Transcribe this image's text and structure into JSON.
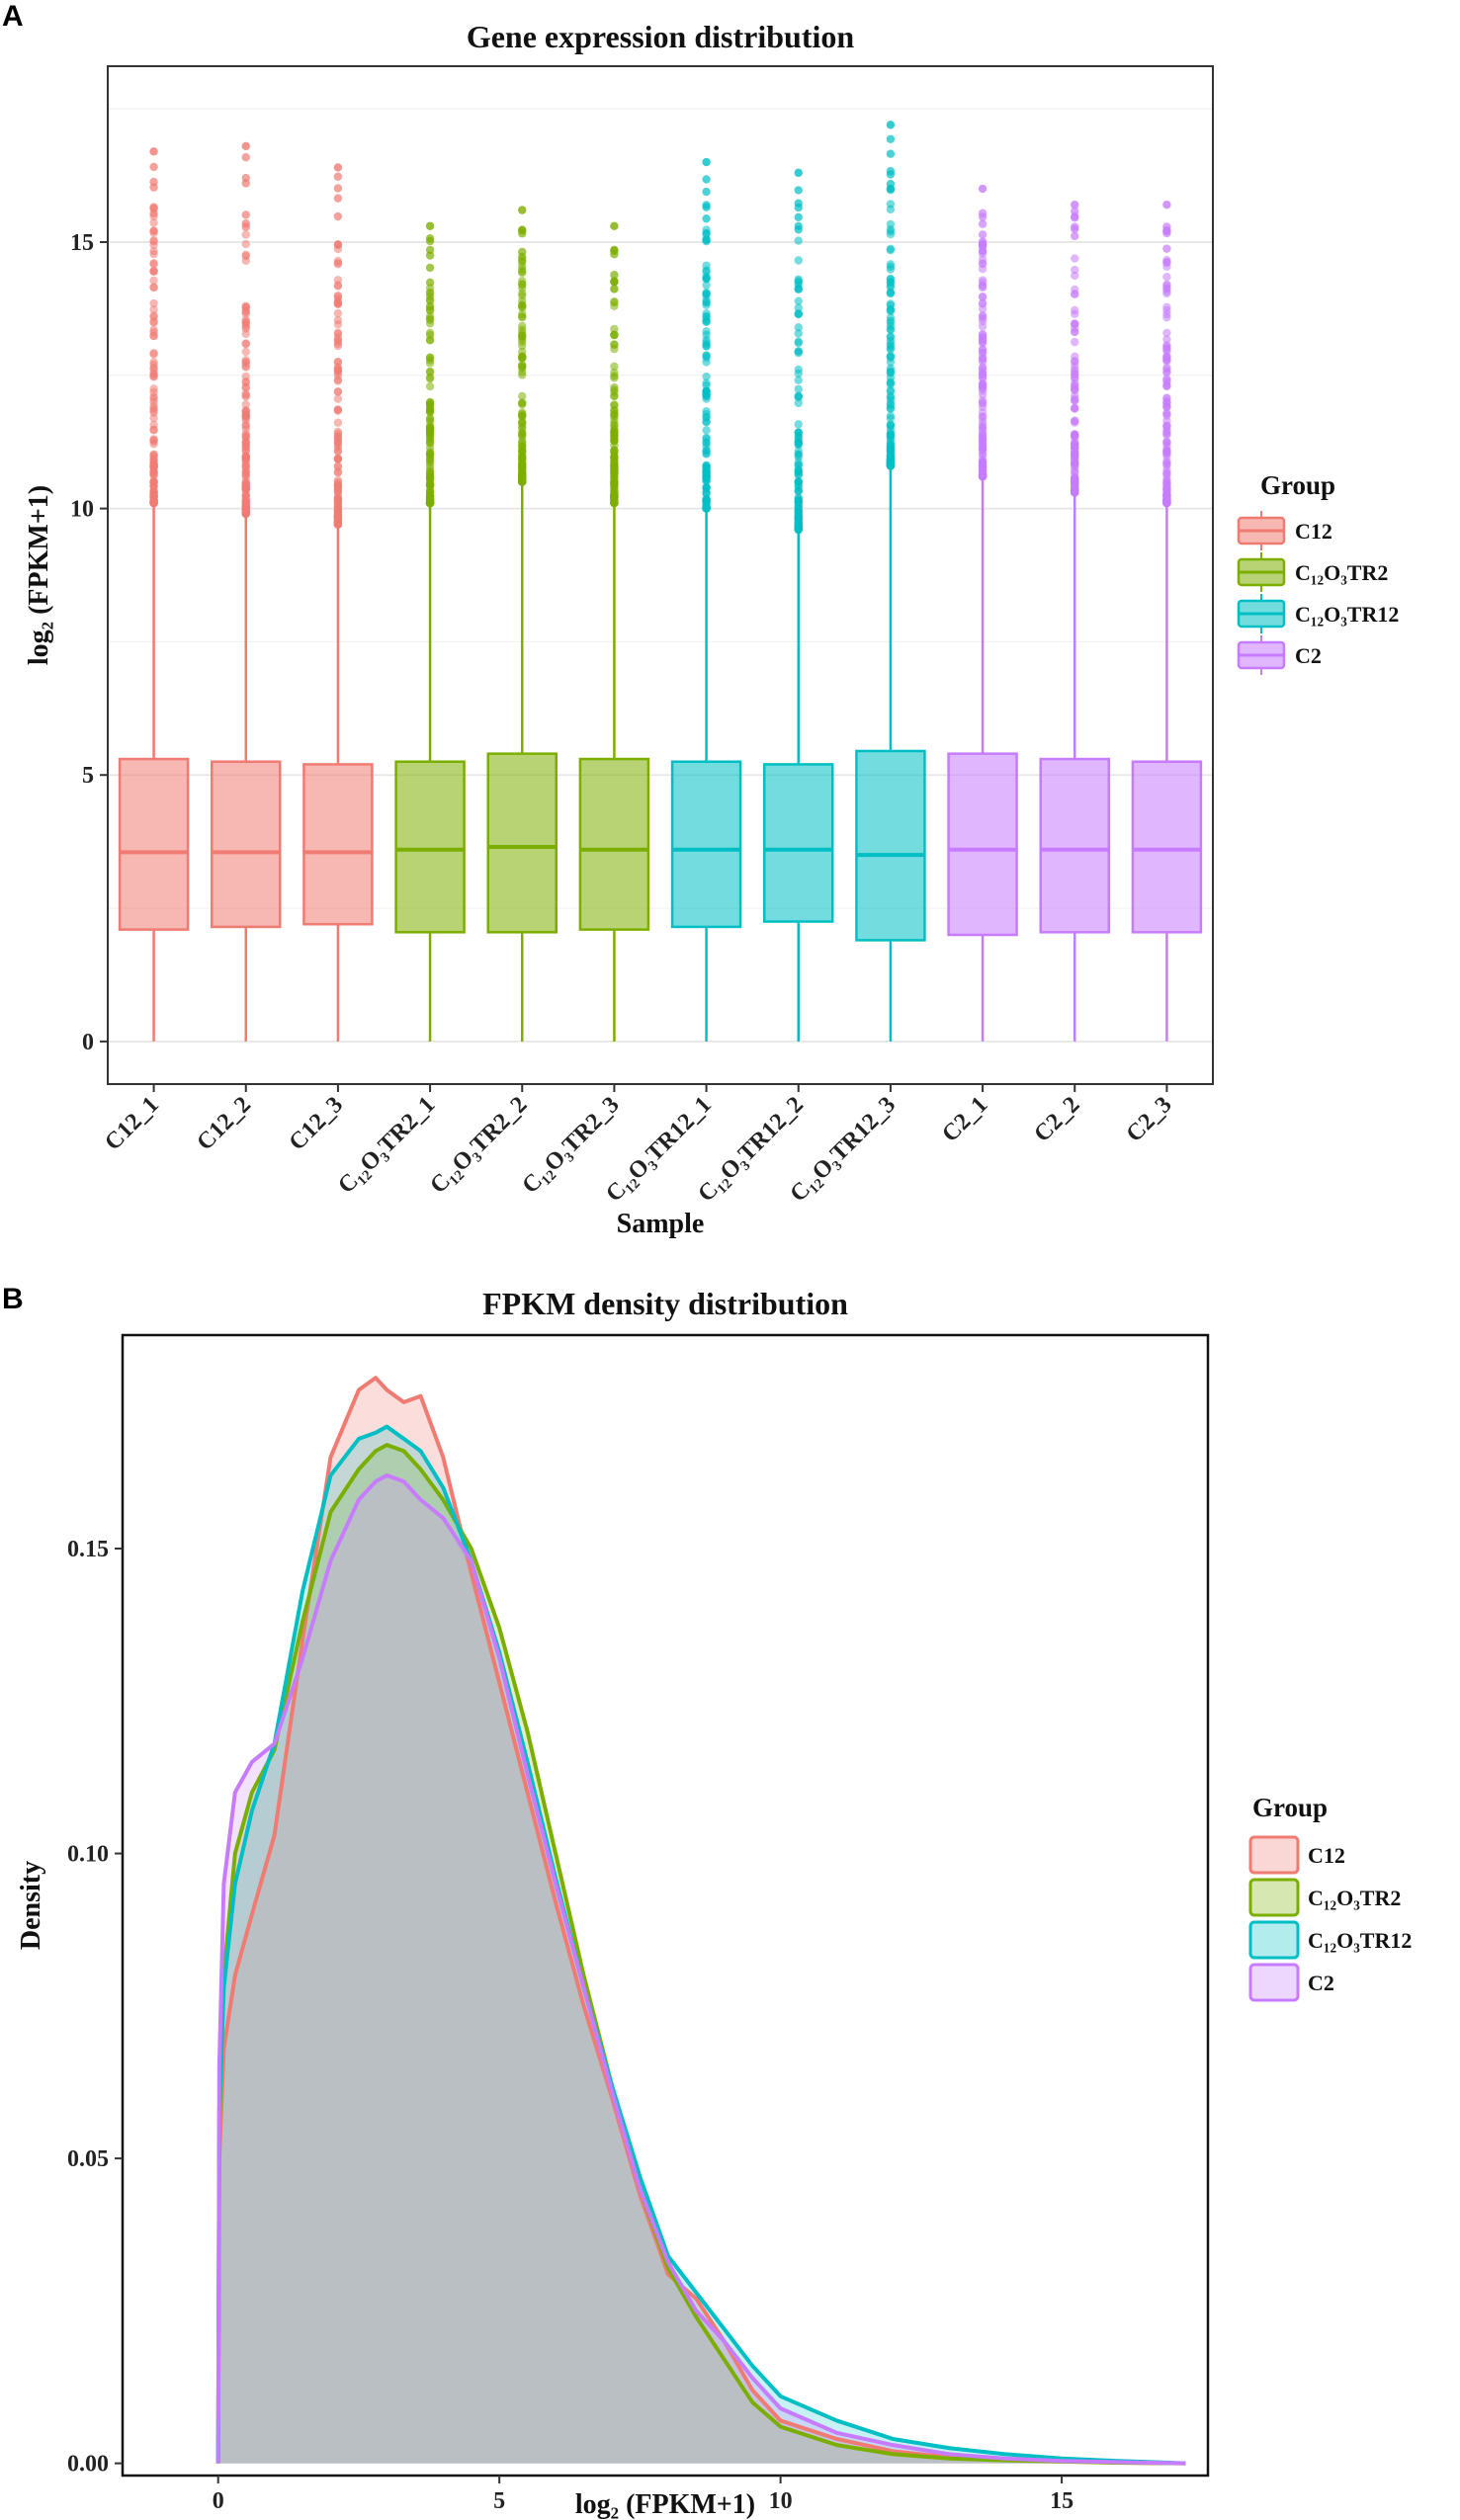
{
  "panels": {
    "a": "A",
    "b": "B"
  },
  "groups": [
    {
      "name": "C12",
      "label": "C12",
      "color": "#F07B72"
    },
    {
      "name": "C12O3TR2",
      "label": "C₁₂O₃TR2",
      "color": "#7CAE00"
    },
    {
      "name": "C12O3TR12",
      "label": "C₁₂O₃TR12",
      "color": "#00BFC4"
    },
    {
      "name": "C2",
      "label": "C2",
      "color": "#C77CFF"
    }
  ],
  "chart_data": [
    {
      "type": "boxplot",
      "title": "Gene expression distribution",
      "xlabel": "Sample",
      "ylabel": "log₂ (FPKM+1)",
      "ylim": [
        -0.8,
        18.3
      ],
      "yticks": [
        0,
        5,
        10,
        15
      ],
      "legend_title": "Group",
      "legend_position": "right",
      "samples": [
        {
          "label": "C12_1",
          "group": 0,
          "min": 0,
          "q1": 2.1,
          "median": 3.55,
          "q3": 5.3,
          "whisker_high": 10.1,
          "outlier_max": 16.7
        },
        {
          "label": "C12_2",
          "group": 0,
          "min": 0,
          "q1": 2.15,
          "median": 3.55,
          "q3": 5.25,
          "whisker_high": 9.9,
          "outlier_max": 16.8
        },
        {
          "label": "C12_3",
          "group": 0,
          "min": 0,
          "q1": 2.2,
          "median": 3.55,
          "q3": 5.2,
          "whisker_high": 9.7,
          "outlier_max": 16.4
        },
        {
          "label": "C₁₂O₃TR2_1",
          "group": 1,
          "min": 0,
          "q1": 2.05,
          "median": 3.6,
          "q3": 5.25,
          "whisker_high": 10.1,
          "outlier_max": 15.3
        },
        {
          "label": "C₁₂O₃TR2_2",
          "group": 1,
          "min": 0,
          "q1": 2.05,
          "median": 3.65,
          "q3": 5.4,
          "whisker_high": 10.5,
          "outlier_max": 15.6
        },
        {
          "label": "C₁₂O₃TR2_3",
          "group": 1,
          "min": 0,
          "q1": 2.1,
          "median": 3.6,
          "q3": 5.3,
          "whisker_high": 10.1,
          "outlier_max": 15.3
        },
        {
          "label": "C₁₂O₃TR12_1",
          "group": 2,
          "min": 0,
          "q1": 2.15,
          "median": 3.6,
          "q3": 5.25,
          "whisker_high": 10.0,
          "outlier_max": 16.5
        },
        {
          "label": "C₁₂O₃TR12_2",
          "group": 2,
          "min": 0,
          "q1": 2.25,
          "median": 3.6,
          "q3": 5.2,
          "whisker_high": 9.6,
          "outlier_max": 16.3
        },
        {
          "label": "C₁₂O₃TR12_3",
          "group": 2,
          "min": 0,
          "q1": 1.9,
          "median": 3.5,
          "q3": 5.45,
          "whisker_high": 10.8,
          "outlier_max": 17.2
        },
        {
          "label": "C2_1",
          "group": 3,
          "min": 0,
          "q1": 2.0,
          "median": 3.6,
          "q3": 5.4,
          "whisker_high": 10.6,
          "outlier_max": 16.0
        },
        {
          "label": "C2_2",
          "group": 3,
          "min": 0,
          "q1": 2.05,
          "median": 3.6,
          "q3": 5.3,
          "whisker_high": 10.3,
          "outlier_max": 15.7
        },
        {
          "label": "C2_3",
          "group": 3,
          "min": 0,
          "q1": 2.05,
          "median": 3.6,
          "q3": 5.25,
          "whisker_high": 10.1,
          "outlier_max": 15.7
        }
      ]
    },
    {
      "type": "area",
      "title": "FPKM density distribution",
      "xlabel": "log₂ (FPKM+1)",
      "ylabel": "Density",
      "xlim": [
        -1.7,
        17.6
      ],
      "ylim": [
        -0.002,
        0.185
      ],
      "xticks": [
        0,
        5,
        10,
        15
      ],
      "yticks": [
        0.0,
        0.05,
        0.1,
        0.15
      ],
      "ytick_labels": [
        "0.00",
        "0.05",
        "0.10",
        "0.15"
      ],
      "legend_title": "Group",
      "legend_position": "right",
      "x": [
        0,
        0.02,
        0.1,
        0.3,
        0.6,
        1.0,
        1.5,
        2.0,
        2.5,
        2.8,
        3.0,
        3.3,
        3.6,
        4.0,
        4.5,
        5.0,
        5.5,
        6.0,
        6.5,
        7.0,
        7.5,
        8.0,
        8.5,
        9.0,
        9.5,
        10.0,
        11.0,
        12.0,
        13.0,
        14.0,
        15.0,
        16.0,
        17.2
      ],
      "series": [
        {
          "name": "C12",
          "group": 0,
          "values": [
            0,
            0.05,
            0.068,
            0.08,
            0.09,
            0.103,
            0.135,
            0.165,
            0.176,
            0.178,
            0.176,
            0.174,
            0.175,
            0.165,
            0.146,
            0.128,
            0.11,
            0.092,
            0.075,
            0.06,
            0.044,
            0.031,
            0.027,
            0.02,
            0.012,
            0.007,
            0.004,
            0.002,
            0.001,
            0.0006,
            0.0003,
            0.0001,
            0.0
          ]
        },
        {
          "name": "C12O3TR2",
          "group": 1,
          "values": [
            0,
            0.055,
            0.08,
            0.1,
            0.11,
            0.117,
            0.138,
            0.156,
            0.163,
            0.166,
            0.167,
            0.166,
            0.163,
            0.158,
            0.15,
            0.137,
            0.12,
            0.1,
            0.08,
            0.062,
            0.045,
            0.032,
            0.024,
            0.017,
            0.01,
            0.006,
            0.003,
            0.0015,
            0.0008,
            0.0005,
            0.0003,
            0.0001,
            0.0
          ]
        },
        {
          "name": "C12O3TR12",
          "group": 2,
          "values": [
            0,
            0.058,
            0.078,
            0.095,
            0.107,
            0.118,
            0.143,
            0.162,
            0.168,
            0.169,
            0.17,
            0.168,
            0.166,
            0.16,
            0.148,
            0.133,
            0.115,
            0.096,
            0.078,
            0.062,
            0.047,
            0.034,
            0.028,
            0.022,
            0.016,
            0.011,
            0.007,
            0.004,
            0.0025,
            0.0015,
            0.0008,
            0.0004,
            0.0
          ]
        },
        {
          "name": "C2",
          "group": 3,
          "values": [
            0,
            0.065,
            0.095,
            0.11,
            0.115,
            0.118,
            0.132,
            0.148,
            0.158,
            0.161,
            0.162,
            0.161,
            0.158,
            0.155,
            0.148,
            0.132,
            0.113,
            0.095,
            0.078,
            0.061,
            0.045,
            0.033,
            0.025,
            0.02,
            0.014,
            0.009,
            0.005,
            0.003,
            0.0015,
            0.0008,
            0.0004,
            0.0002,
            0.0
          ]
        }
      ]
    }
  ]
}
